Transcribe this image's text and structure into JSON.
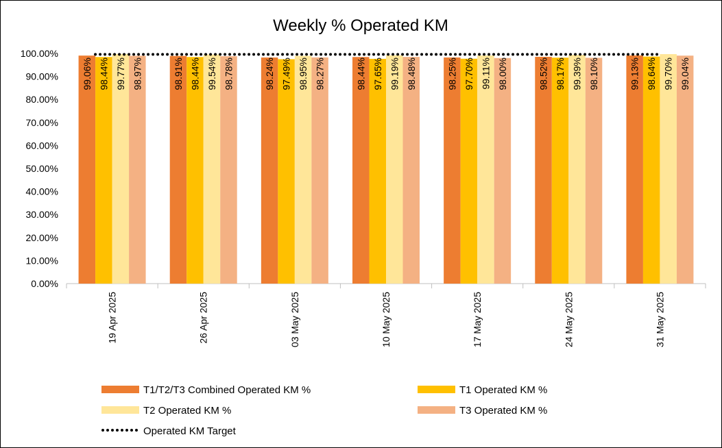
{
  "chart_data": {
    "type": "bar",
    "title": "Weekly % Operated KM",
    "xlabel": "",
    "ylabel": "",
    "ylim": [
      0,
      100
    ],
    "yticks": [
      "0.00%",
      "10.00%",
      "20.00%",
      "30.00%",
      "40.00%",
      "50.00%",
      "60.00%",
      "70.00%",
      "80.00%",
      "90.00%",
      "100.00%"
    ],
    "categories": [
      "19 Apr 2025",
      "26 Apr 2025",
      "03 May 2025",
      "10 May 2025",
      "17 May 2025",
      "24 May 2025",
      "31 May 2025"
    ],
    "series": [
      {
        "name": "T1/T2/T3 Combined Operated KM %",
        "color": "#ED7D31",
        "values": [
          99.06,
          98.91,
          98.24,
          98.44,
          98.25,
          98.52,
          99.13
        ],
        "labels": [
          "99.06%",
          "98.91%",
          "98.24%",
          "98.44%",
          "98.25%",
          "98.52%",
          "99.13%"
        ]
      },
      {
        "name": "T1 Operated KM %",
        "color": "#FFC000",
        "values": [
          98.44,
          98.44,
          97.49,
          97.65,
          97.7,
          98.17,
          98.64
        ],
        "labels": [
          "98.44%",
          "98.44%",
          "97.49%",
          "97.65%",
          "97.70%",
          "98.17%",
          "98.64%"
        ]
      },
      {
        "name": "T2 Operated KM %",
        "color": "#FFE699",
        "values": [
          99.77,
          99.54,
          98.95,
          99.19,
          99.11,
          99.39,
          99.7
        ],
        "labels": [
          "99.77%",
          "99.54%",
          "98.95%",
          "99.19%",
          "99.11%",
          "99.39%",
          "99.70%"
        ]
      },
      {
        "name": "T3 Operated KM %",
        "color": "#F4B183",
        "values": [
          98.97,
          98.78,
          98.27,
          98.48,
          98.0,
          98.1,
          99.04
        ],
        "labels": [
          "98.97%",
          "98.78%",
          "98.27%",
          "98.48%",
          "98.00%",
          "98.10%",
          "99.04%"
        ]
      }
    ],
    "target": {
      "name": "Operated KM Target",
      "value": 99.0,
      "style": "dotted",
      "color": "#000000"
    },
    "legend_position": "bottom",
    "grid": false
  }
}
